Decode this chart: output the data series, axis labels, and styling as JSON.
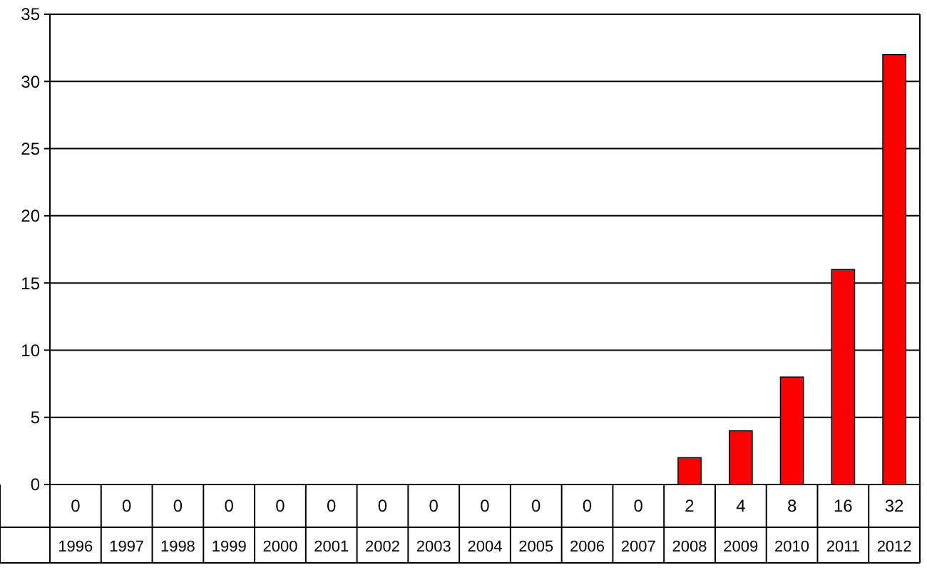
{
  "chart_data": {
    "type": "bar",
    "categories": [
      "1996",
      "1997",
      "1998",
      "1999",
      "2000",
      "2001",
      "2002",
      "2003",
      "2004",
      "2005",
      "2006",
      "2007",
      "2008",
      "2009",
      "2010",
      "2011",
      "2012"
    ],
    "values": [
      0,
      0,
      0,
      0,
      0,
      0,
      0,
      0,
      0,
      0,
      0,
      0,
      2,
      4,
      8,
      16,
      32
    ],
    "color": "#ff0000",
    "ylim": [
      0,
      35
    ],
    "yticks": [
      0,
      5,
      10,
      15,
      20,
      25,
      30,
      35
    ],
    "grid": "y",
    "data_labels": true
  }
}
